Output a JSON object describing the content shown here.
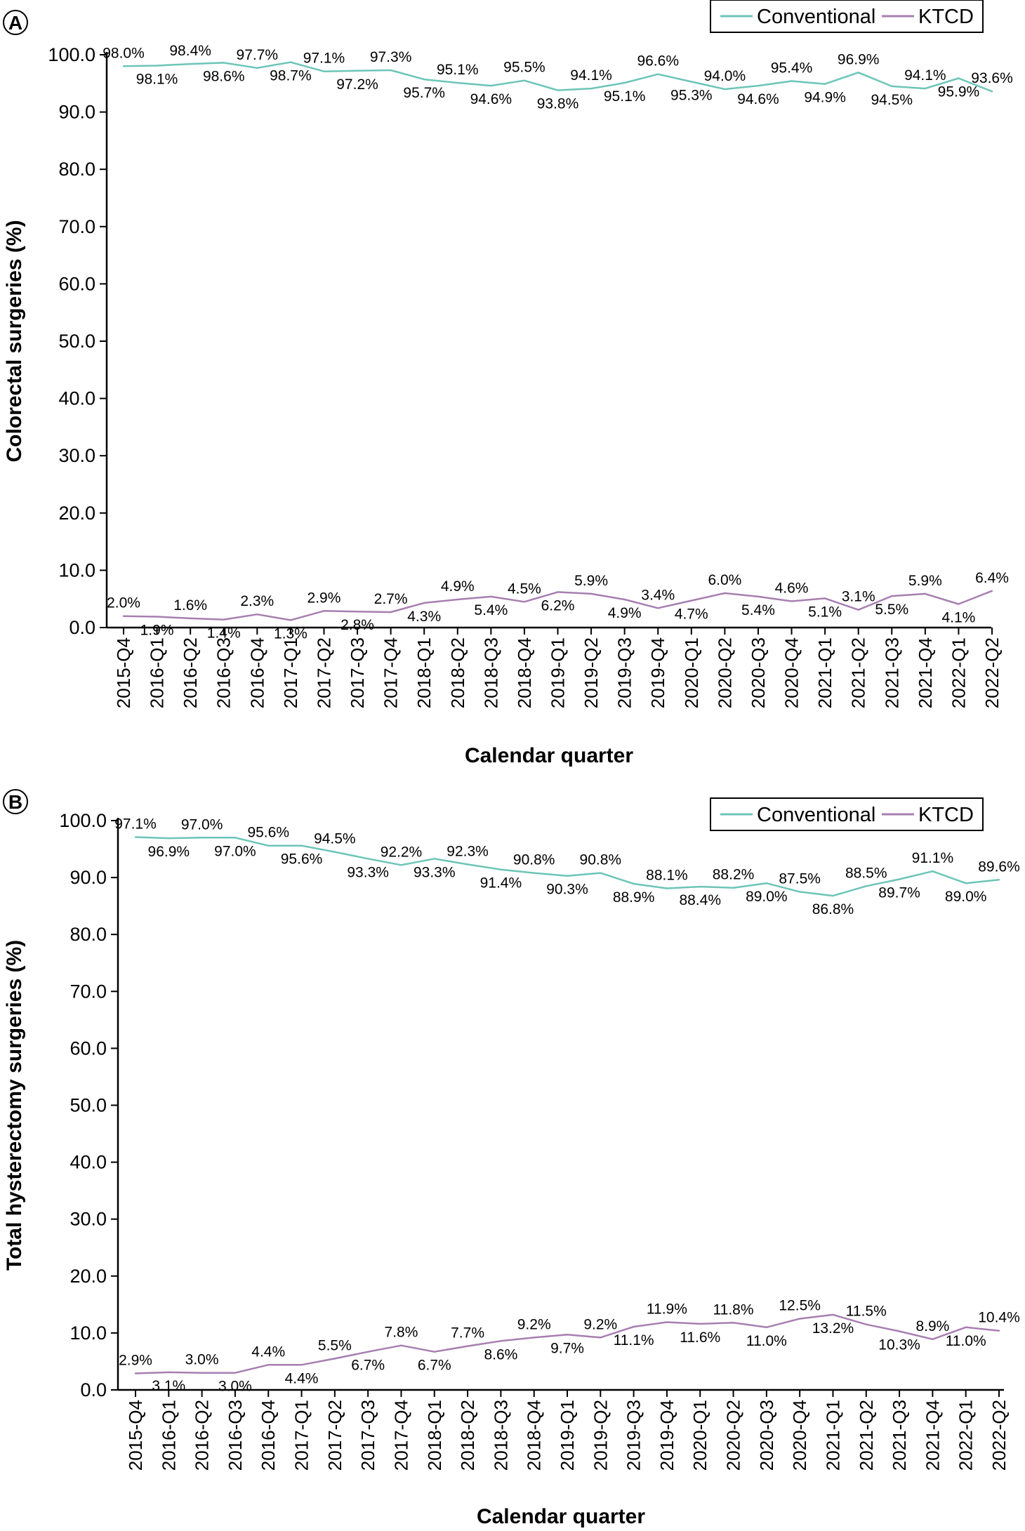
{
  "colors": {
    "conventional": "#6cc5b8",
    "ktcd": "#a77fb0"
  },
  "chart_data": [
    {
      "type": "line",
      "panel_label": "A",
      "xlabel": "Calendar quarter",
      "ylabel": "Colorectal surgeries (%)",
      "ylim": [
        0,
        100
      ],
      "yticks": [
        "0.0",
        "10.0",
        "20.0",
        "30.0",
        "40.0",
        "50.0",
        "60.0",
        "70.0",
        "80.0",
        "90.0",
        "100.0"
      ],
      "legend": [
        "Conventional",
        "KTCD"
      ],
      "legend_position": "top-right",
      "categories": [
        "2015-Q4",
        "2016-Q1",
        "2016-Q2",
        "2016-Q3",
        "2016-Q4",
        "2017-Q1",
        "2017-Q2",
        "2017-Q3",
        "2017-Q4",
        "2018-Q1",
        "2018-Q2",
        "2018-Q3",
        "2018-Q4",
        "2019-Q1",
        "2019-Q2",
        "2019-Q3",
        "2019-Q4",
        "2020-Q1",
        "2020-Q2",
        "2020-Q3",
        "2020-Q4",
        "2021-Q1",
        "2021-Q2",
        "2021-Q3",
        "2021-Q4",
        "2022-Q1",
        "2022-Q2"
      ],
      "series": [
        {
          "name": "Conventional",
          "values": [
            98.0,
            98.1,
            98.4,
            98.6,
            97.7,
            98.7,
            97.1,
            97.2,
            97.3,
            95.7,
            95.1,
            94.6,
            95.5,
            93.8,
            94.1,
            95.1,
            96.6,
            95.3,
            94.0,
            94.6,
            95.4,
            94.9,
            96.9,
            94.5,
            94.1,
            95.9,
            93.6
          ],
          "labels": [
            "98.0%",
            "98.1%",
            "98.4%",
            "98.6%",
            "97.7%",
            "98.7%",
            "97.1%",
            "97.2%",
            "97.3%",
            "95.7%",
            "95.1%",
            "94.6%",
            "95.5%",
            "93.8%",
            "94.1%",
            "95.1%",
            "96.6%",
            "95.3%",
            "94.0%",
            "94.6%",
            "95.4%",
            "94.9%",
            "96.9%",
            "94.5%",
            "94.1%",
            "95.9%",
            "93.6%"
          ]
        },
        {
          "name": "KTCD",
          "values": [
            2.0,
            1.9,
            1.6,
            1.4,
            2.3,
            1.3,
            2.9,
            2.8,
            2.7,
            4.3,
            4.9,
            5.4,
            4.5,
            6.2,
            5.9,
            4.9,
            3.4,
            4.7,
            6.0,
            5.4,
            4.6,
            5.1,
            3.1,
            5.5,
            5.9,
            4.1,
            6.4
          ],
          "labels": [
            "2.0%",
            "1.9%",
            "1.6%",
            "1.4%",
            "2.3%",
            "1.3%",
            "2.9%",
            "2.8%",
            "2.7%",
            "4.3%",
            "4.9%",
            "5.4%",
            "4.5%",
            "6.2%",
            "5.9%",
            "4.9%",
            "3.4%",
            "4.7%",
            "6.0%",
            "5.4%",
            "4.6%",
            "5.1%",
            "3.1%",
            "5.5%",
            "5.9%",
            "4.1%",
            "6.4%"
          ]
        }
      ]
    },
    {
      "type": "line",
      "panel_label": "B",
      "xlabel": "Calendar quarter",
      "ylabel": "Total hysterectomy surgeries (%)",
      "ylim": [
        0,
        100
      ],
      "yticks": [
        "0.0",
        "10.0",
        "20.0",
        "30.0",
        "40.0",
        "50.0",
        "60.0",
        "70.0",
        "80.0",
        "90.0",
        "100.0"
      ],
      "legend": [
        "Conventional",
        "KTCD"
      ],
      "legend_position": "top-right",
      "categories": [
        "2015-Q4",
        "2016-Q1",
        "2016-Q2",
        "2016-Q3",
        "2016-Q4",
        "2017-Q1",
        "2017-Q2",
        "2017-Q3",
        "2017-Q4",
        "2018-Q1",
        "2018-Q2",
        "2018-Q3",
        "2018-Q4",
        "2019-Q1",
        "2019-Q2",
        "2019-Q3",
        "2019-Q4",
        "2020-Q1",
        "2020-Q2",
        "2020-Q3",
        "2020-Q4",
        "2021-Q1",
        "2021-Q2",
        "2021-Q3",
        "2021-Q4",
        "2022-Q1",
        "2022-Q2"
      ],
      "series": [
        {
          "name": "Conventional",
          "values": [
            97.1,
            96.9,
            97.0,
            97.0,
            95.6,
            95.6,
            94.5,
            93.3,
            92.2,
            93.3,
            92.3,
            91.4,
            90.8,
            90.3,
            90.8,
            88.9,
            88.1,
            88.4,
            88.2,
            89.0,
            87.5,
            86.8,
            88.5,
            89.7,
            91.1,
            89.0,
            89.6
          ],
          "labels": [
            "97.1%",
            "96.9%",
            "97.0%",
            "97.0%",
            "95.6%",
            "95.6%",
            "94.5%",
            "93.3%",
            "92.2%",
            "93.3%",
            "92.3%",
            "91.4%",
            "90.8%",
            "90.3%",
            "90.8%",
            "88.9%",
            "88.1%",
            "88.4%",
            "88.2%",
            "89.0%",
            "87.5%",
            "86.8%",
            "88.5%",
            "89.7%",
            "91.1%",
            "89.0%",
            "89.6%"
          ]
        },
        {
          "name": "KTCD",
          "values": [
            2.9,
            3.1,
            3.0,
            3.0,
            4.4,
            4.4,
            5.5,
            6.7,
            7.8,
            6.7,
            7.7,
            8.6,
            9.2,
            9.7,
            9.2,
            11.1,
            11.9,
            11.6,
            11.8,
            11.0,
            12.5,
            13.2,
            11.5,
            10.3,
            8.9,
            11.0,
            10.4
          ],
          "labels": [
            "2.9%",
            "3.1%",
            "3.0%",
            "3.0%",
            "4.4%",
            "4.4%",
            "5.5%",
            "6.7%",
            "7.8%",
            "6.7%",
            "7.7%",
            "8.6%",
            "9.2%",
            "9.7%",
            "9.2%",
            "11.1%",
            "11.9%",
            "11.6%",
            "11.8%",
            "11.0%",
            "12.5%",
            "13.2%",
            "11.5%",
            "10.3%",
            "8.9%",
            "11.0%",
            "10.4%"
          ]
        }
      ]
    }
  ]
}
